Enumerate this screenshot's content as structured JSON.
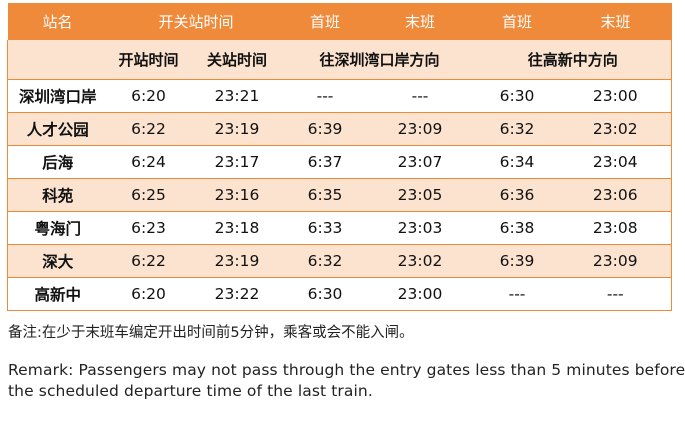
{
  "table": {
    "header": {
      "station": "站名",
      "hours": "开关站时间",
      "sz_first": "首班",
      "sz_last": "末班",
      "gx_first": "首班",
      "gx_last": "末班"
    },
    "subheader": {
      "open_time": "开站时间",
      "close_time": "关站时间",
      "direction_shenzhenwan": "往深圳湾口岸方向",
      "direction_gaoxinzhong": "往高新中方向"
    },
    "rows": [
      {
        "station": "深圳湾口岸",
        "open": "6:20",
        "close": "23:21",
        "sz_first": "---",
        "sz_last": "---",
        "gx_first": "6:30",
        "gx_last": "23:00"
      },
      {
        "station": "人才公园",
        "open": "6:22",
        "close": "23:19",
        "sz_first": "6:39",
        "sz_last": "23:09",
        "gx_first": "6:32",
        "gx_last": "23:02"
      },
      {
        "station": "后海",
        "open": "6:24",
        "close": "23:17",
        "sz_first": "6:37",
        "sz_last": "23:07",
        "gx_first": "6:34",
        "gx_last": "23:04"
      },
      {
        "station": "科苑",
        "open": "6:25",
        "close": "23:16",
        "sz_first": "6:35",
        "sz_last": "23:05",
        "gx_first": "6:36",
        "gx_last": "23:06"
      },
      {
        "station": "粤海门",
        "open": "6:23",
        "close": "23:18",
        "sz_first": "6:33",
        "sz_last": "23:03",
        "gx_first": "6:38",
        "gx_last": "23:08"
      },
      {
        "station": "深大",
        "open": "6:22",
        "close": "23:19",
        "sz_first": "6:32",
        "sz_last": "23:02",
        "gx_first": "6:39",
        "gx_last": "23:09"
      },
      {
        "station": "高新中",
        "open": "6:20",
        "close": "23:22",
        "sz_first": "6:30",
        "sz_last": "23:00",
        "gx_first": "---",
        "gx_last": "---"
      }
    ]
  },
  "note": "备注:在少于末班车编定开出时间前5分钟，乘客或会不能入闸。",
  "remark": {
    "line1": "Remark: Passengers may not pass through the entry gates less than 5 minutes before",
    "line2": "the scheduled departure time of the last train."
  },
  "colors": {
    "header_bg": "#f08a3b",
    "tint_bg": "#fbe3d0",
    "border": "#f08a3b"
  }
}
